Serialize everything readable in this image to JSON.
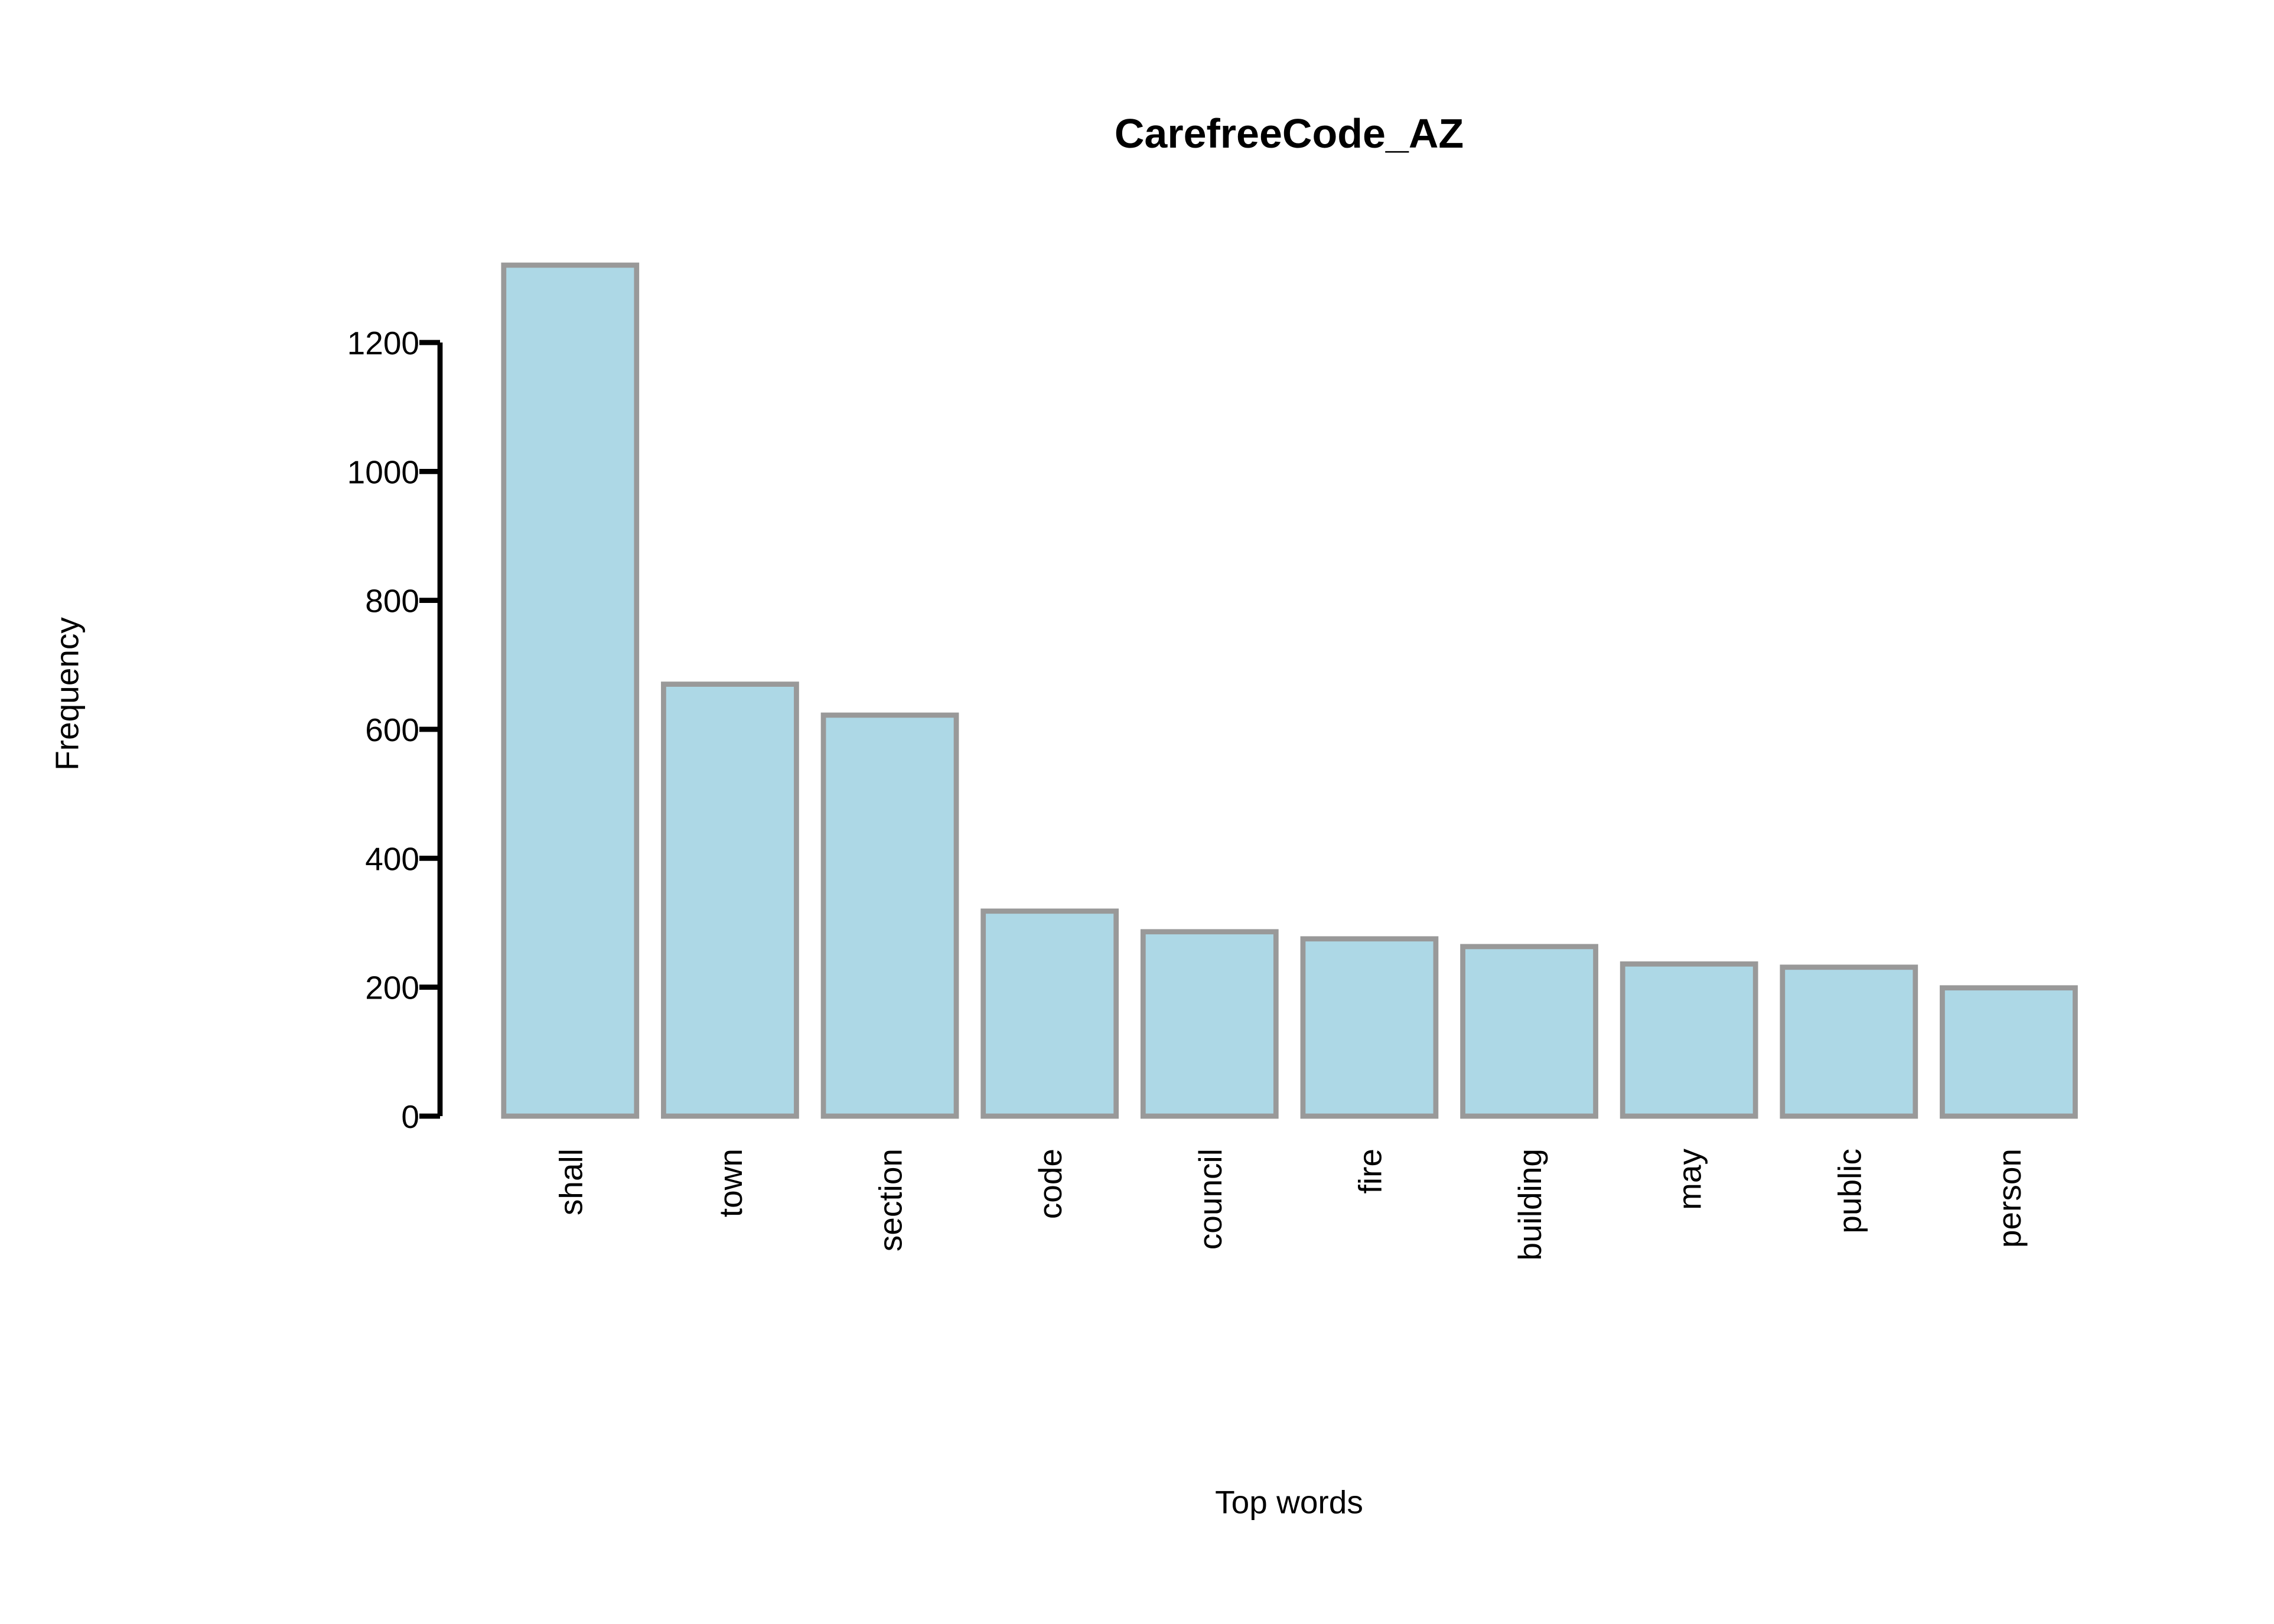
{
  "chart_data": {
    "type": "bar",
    "title": "CarefreeCode_AZ",
    "x_label": "Top words",
    "y_label": "Frequency",
    "categories": [
      "shall",
      "town",
      "section",
      "code",
      "council",
      "fire",
      "building",
      "may",
      "public",
      "person"
    ],
    "values": [
      1320,
      670,
      622,
      318,
      286,
      275,
      263,
      236,
      231,
      199
    ],
    "color": "#add8e6",
    "edge_color": "#999999",
    "ylim": [
      0,
      1320
    ],
    "yticks": [
      0,
      200,
      400,
      600,
      800,
      1000,
      1200
    ],
    "grid": false
  }
}
